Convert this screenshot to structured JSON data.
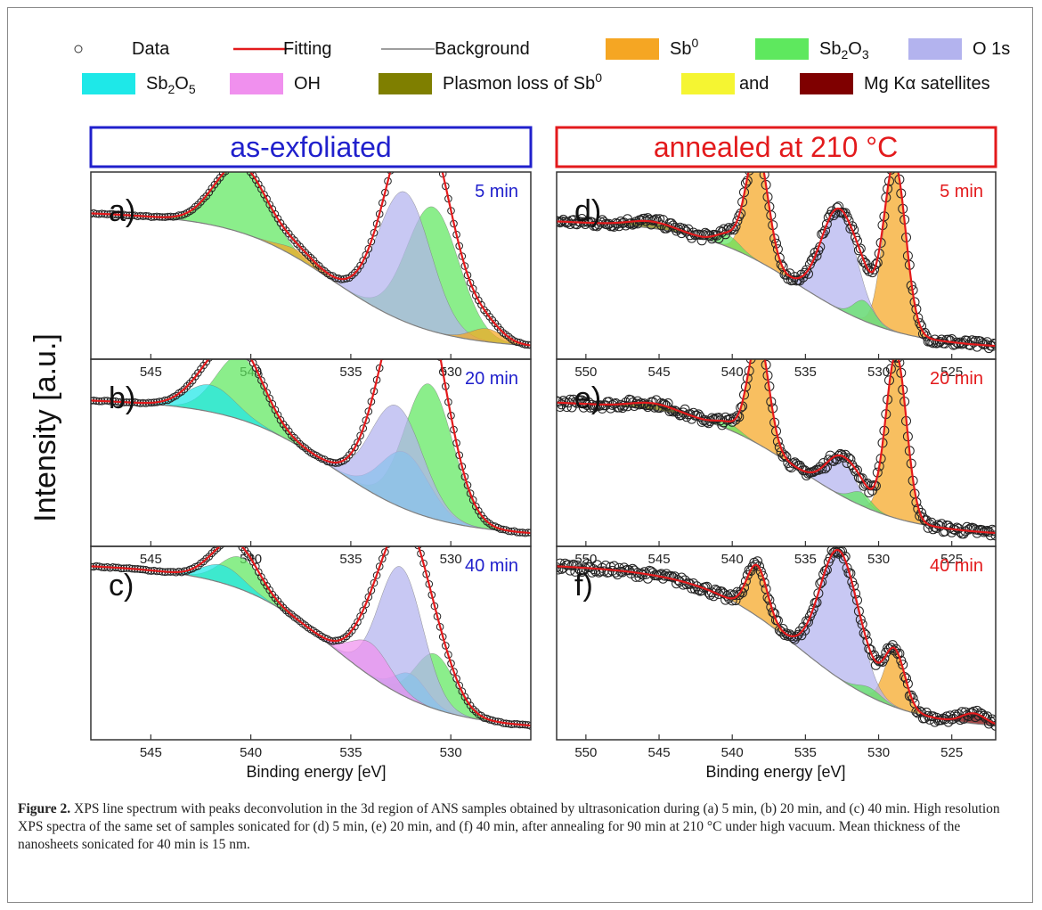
{
  "legend": {
    "items": [
      {
        "key": "data",
        "label": "Data",
        "kind": "marker"
      },
      {
        "key": "fit",
        "label": "Fitting",
        "kind": "line",
        "color": "#e31a1c"
      },
      {
        "key": "bg",
        "label": "Background",
        "kind": "line",
        "color": "#7f7f7f"
      },
      {
        "key": "sb0",
        "label": "Sb",
        "sup": "0",
        "kind": "swatch",
        "color": "#f5a623"
      },
      {
        "key": "sb2o3",
        "label": "Sb",
        "sub": "2",
        "mid": "O",
        "sub2": "3",
        "kind": "swatch",
        "color": "#5ee85e"
      },
      {
        "key": "o1s",
        "label": "O 1s",
        "kind": "swatch",
        "color": "#b3b3ee"
      },
      {
        "key": "sb2o5",
        "label": "Sb",
        "sub": "2",
        "mid": "O",
        "sub2": "5",
        "kind": "swatch",
        "color": "#1ee8e8"
      },
      {
        "key": "oh",
        "label": "OH",
        "kind": "swatch",
        "color": "#f090ee"
      },
      {
        "key": "plasmon",
        "label": "Plasmon loss of Sb",
        "sup": "0",
        "kind": "swatch",
        "color": "#7f7f00"
      },
      {
        "key": "kalpha",
        "label": "and",
        "kind": "swatch",
        "color": "#f5f532"
      },
      {
        "key": "sat",
        "label": "Mg Kα satellites",
        "kind": "swatch",
        "color": "#7f0000"
      }
    ]
  },
  "headers": {
    "left": {
      "text": "as-exfoliated",
      "color": "#2020cc"
    },
    "right": {
      "text": "annealed at 210 °C",
      "color": "#e31a1c"
    }
  },
  "y_axis_label": "Intensity [a.u.]",
  "x_axis_label": "Binding energy [eV]",
  "colors": {
    "fit": "#e31a1c",
    "bg": "#7f7f7f",
    "sb0": "#f5a623",
    "sb2o3": "#5ee85e",
    "o1s": "#b3b3ee",
    "sb2o5": "#1ee8e8",
    "oh": "#f090ee",
    "plasmon": "#7f7f00",
    "kalpha": "#f5f532",
    "sat": "#7f0000"
  },
  "chart_data": [
    {
      "panel": "a)",
      "time": "5 min",
      "type": "line",
      "xlim": [
        548,
        526
      ],
      "x_ticks": [
        545,
        540,
        535,
        530
      ],
      "series": [
        {
          "name": "Sb2O3",
          "values": [
            {
              "center": 540.5,
              "height": 0.52,
              "width": 1.3
            },
            {
              "center": 530.9,
              "height": 0.95,
              "width": 1.3
            }
          ]
        },
        {
          "name": "O 1s",
          "values": [
            {
              "center": 532.3,
              "height": 0.99,
              "width": 1.3
            }
          ]
        },
        {
          "name": "Sb0",
          "values": [
            {
              "center": 528.2,
              "height": 0.1,
              "width": 0.8
            },
            {
              "center": 537.6,
              "height": 0.06,
              "width": 0.9
            }
          ]
        }
      ]
    },
    {
      "panel": "b)",
      "time": "20 min",
      "type": "line",
      "xlim": [
        548,
        526
      ],
      "x_ticks": [
        545,
        540,
        535,
        530
      ],
      "series": [
        {
          "name": "Sb2O3",
          "values": [
            {
              "center": 540.5,
              "height": 0.47,
              "width": 1.2
            },
            {
              "center": 531.1,
              "height": 0.99,
              "width": 1.2
            }
          ]
        },
        {
          "name": "Sb2O5",
          "values": [
            {
              "center": 542.0,
              "height": 0.2,
              "width": 1.2
            },
            {
              "center": 532.3,
              "height": 0.42,
              "width": 1.2
            }
          ]
        },
        {
          "name": "O 1s",
          "values": [
            {
              "center": 532.7,
              "height": 0.74,
              "width": 1.3
            }
          ]
        }
      ]
    },
    {
      "panel": "c)",
      "time": "40 min",
      "type": "line",
      "xlim": [
        548,
        526
      ],
      "x_ticks": [
        545,
        540,
        535,
        530
      ],
      "series": [
        {
          "name": "Sb2O3",
          "values": [
            {
              "center": 540.5,
              "height": 0.25,
              "width": 1.0
            },
            {
              "center": 530.8,
              "height": 0.43,
              "width": 1.0
            }
          ]
        },
        {
          "name": "Sb2O5",
          "values": [
            {
              "center": 541.4,
              "height": 0.14,
              "width": 1.0
            },
            {
              "center": 532.0,
              "height": 0.2,
              "width": 0.8
            }
          ]
        },
        {
          "name": "O 1s",
          "values": [
            {
              "center": 532.5,
              "height": 1.0,
              "width": 1.1
            }
          ]
        },
        {
          "name": "OH",
          "values": [
            {
              "center": 534.0,
              "height": 0.26,
              "width": 1.0
            }
          ]
        }
      ]
    },
    {
      "panel": "d)",
      "time": "5 min",
      "type": "line",
      "xlim": [
        552,
        522
      ],
      "x_ticks": [
        550,
        545,
        540,
        535,
        530,
        525
      ],
      "series": [
        {
          "name": "Sb0",
          "values": [
            {
              "center": 538.3,
              "height": 0.66,
              "width": 0.75
            },
            {
              "center": 528.9,
              "height": 1.0,
              "width": 0.75
            }
          ]
        },
        {
          "name": "O 1s",
          "values": [
            {
              "center": 532.7,
              "height": 0.59,
              "width": 1.2
            }
          ]
        },
        {
          "name": "Sb2O3",
          "values": [
            {
              "center": 540.3,
              "height": 0.07,
              "width": 0.8
            },
            {
              "center": 531.0,
              "height": 0.12,
              "width": 0.7
            }
          ]
        },
        {
          "name": "Plasmon loss of Sb0",
          "values": [
            {
              "center": 545.5,
              "height": 0.04,
              "width": 1.5
            }
          ]
        }
      ]
    },
    {
      "panel": "e)",
      "time": "20 min",
      "type": "line",
      "xlim": [
        552,
        522
      ],
      "x_ticks": [
        550,
        545,
        540,
        535,
        530,
        525
      ],
      "series": [
        {
          "name": "Sb0",
          "values": [
            {
              "center": 538.2,
              "height": 0.65,
              "width": 0.7
            },
            {
              "center": 528.8,
              "height": 1.0,
              "width": 0.7
            }
          ]
        },
        {
          "name": "O 1s",
          "values": [
            {
              "center": 532.6,
              "height": 0.23,
              "width": 1.0
            }
          ]
        },
        {
          "name": "Sb2O3",
          "values": [
            {
              "center": 540.3,
              "height": 0.04,
              "width": 0.8
            },
            {
              "center": 531.2,
              "height": 0.08,
              "width": 0.7
            }
          ]
        },
        {
          "name": "Plasmon loss of Sb0",
          "values": [
            {
              "center": 545.4,
              "height": 0.04,
              "width": 1.5
            }
          ]
        }
      ]
    },
    {
      "panel": "f)",
      "time": "40 min",
      "type": "line",
      "xlim": [
        552,
        522
      ],
      "x_ticks": [
        550,
        545,
        540,
        535,
        530,
        525
      ],
      "series": [
        {
          "name": "Sb0",
          "values": [
            {
              "center": 538.3,
              "height": 0.4,
              "width": 0.7
            },
            {
              "center": 528.9,
              "height": 0.44,
              "width": 0.7
            }
          ]
        },
        {
          "name": "O 1s",
          "values": [
            {
              "center": 532.7,
              "height": 1.0,
              "width": 1.3
            }
          ]
        },
        {
          "name": "Sb2O3",
          "values": [
            {
              "center": 530.6,
              "height": 0.07,
              "width": 0.8
            }
          ]
        },
        {
          "name": "Mg Kα satellites",
          "values": [
            {
              "center": 523.5,
              "height": 0.08,
              "width": 0.8
            }
          ]
        }
      ]
    }
  ],
  "caption": {
    "label": "Figure 2.",
    "text": " XPS line spectrum with peaks deconvolution in the 3d region of ANS samples obtained by ultrasonication during (a) 5 min, (b) 20 min, and (c) 40 min. High resolution XPS spectra of the same set of samples sonicated for (d) 5 min, (e) 20 min, and (f) 40 min, after annealing for 90 min at 210 °C under high vacuum. Mean thickness of the nanosheets sonicated for 40 min is 15 nm."
  }
}
